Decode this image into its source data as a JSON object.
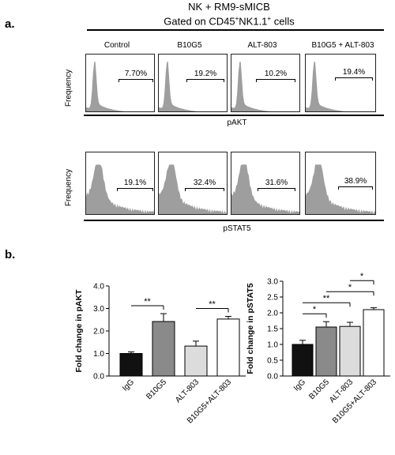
{
  "panel_a": {
    "letter": "a.",
    "title_line1": "NK  + RM9-sMICB",
    "title_line2_pre": "Gated on CD45",
    "title_line2_sup1": "+",
    "title_line2_mid": "NK1.1",
    "title_line2_sup2": "+",
    "title_line2_post": " cells",
    "conditions": [
      "Control",
      "B10G5",
      "ALT-803",
      "B10G5 + ALT-803"
    ],
    "y_axis_label": "Frequency",
    "row1": {
      "x_label": "pAKT",
      "gate_percents": [
        "7.70%",
        "19.2%",
        "10.2%",
        "19.4%"
      ]
    },
    "row2": {
      "x_label": "pSTAT5",
      "gate_percents": [
        "19.1%",
        "32.4%",
        "31.6%",
        "38.9%"
      ]
    }
  },
  "panel_b": {
    "letter": "b.",
    "colors": {
      "IgG": "#111111",
      "B10G5": "#8a8a8a",
      "ALT-803": "#dcdcdc",
      "B10G5+ALT-803": "#ffffff"
    }
  },
  "chart_data": [
    {
      "type": "bar",
      "categories": [
        "IgG",
        "B10G5",
        "ALT-803",
        "B10G5+ALT-803"
      ],
      "values": [
        1.0,
        2.42,
        1.33,
        2.53
      ],
      "errors": [
        0.07,
        0.35,
        0.22,
        0.12
      ],
      "ylabel": "Fold change in pAKT",
      "ylim": [
        0,
        4
      ],
      "yticks": [
        "0.0",
        "1.0",
        "2.0",
        "3.0",
        "4.0"
      ],
      "significance": [
        {
          "from": 0,
          "to": 1,
          "label": "**"
        },
        {
          "from": 2,
          "to": 3,
          "label": "**"
        }
      ]
    },
    {
      "type": "bar",
      "categories": [
        "IgG",
        "B10G5",
        "ALT-803",
        "B10G5+ALT-803"
      ],
      "values": [
        1.0,
        1.55,
        1.57,
        2.1
      ],
      "errors": [
        0.13,
        0.17,
        0.13,
        0.06
      ],
      "ylabel": "Fold change in pSTAT5",
      "ylim": [
        0,
        3
      ],
      "yticks": [
        "0.0",
        "0.5",
        "1.0",
        "1.5",
        "2.0",
        "2.5",
        "3.0"
      ],
      "significance": [
        {
          "from": 0,
          "to": 1,
          "label": "*"
        },
        {
          "from": 0,
          "to": 2,
          "label": "**"
        },
        {
          "from": 1,
          "to": 3,
          "label": "*"
        },
        {
          "from": 2,
          "to": 3,
          "label": "*"
        }
      ]
    }
  ]
}
